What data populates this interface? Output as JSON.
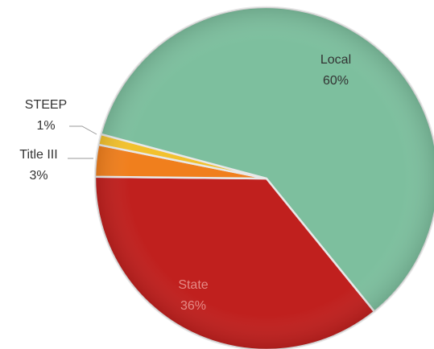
{
  "chart_data": {
    "type": "pie",
    "categories": [
      "State",
      "Title III",
      "STEEP",
      "Local"
    ],
    "values": [
      36,
      3,
      1,
      60
    ],
    "value_labels": [
      "36%",
      "3%",
      "1%",
      "60%"
    ],
    "colors": [
      "#c0201e",
      "#f07f1d",
      "#f2c12e",
      "#7dbf9e"
    ]
  }
}
